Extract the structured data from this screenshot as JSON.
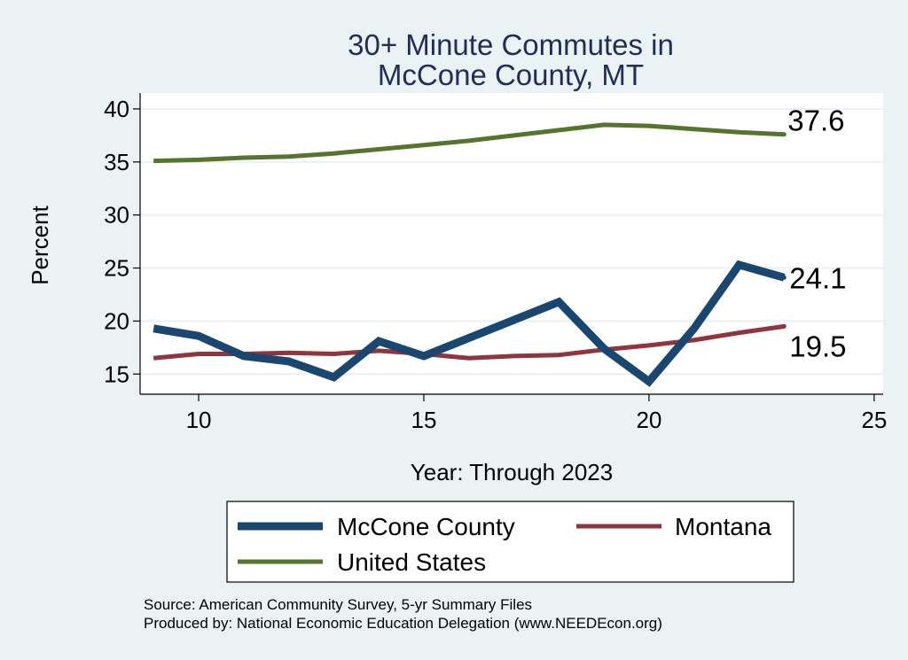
{
  "chart_data": {
    "type": "line",
    "title_lines": [
      "30+ Minute Commutes in",
      "McCone County, MT"
    ],
    "xlabel": "Year: Through 2023",
    "ylabel": "Percent",
    "xlim": [
      8.7,
      25.2
    ],
    "ylim": [
      13.1,
      41.5
    ],
    "xticks": [
      10,
      15,
      20,
      25
    ],
    "yticks": [
      15,
      20,
      25,
      30,
      35,
      40
    ],
    "grid": true,
    "legend_position": "bottom",
    "series": [
      {
        "name": "McCone County",
        "color": "#1a476f",
        "x": [
          9,
          10,
          11,
          12,
          13,
          14,
          15,
          16,
          17,
          18,
          19,
          20,
          21,
          22,
          23
        ],
        "values": [
          19.3,
          18.6,
          16.7,
          16.2,
          14.7,
          18.1,
          16.7,
          18.4,
          20.1,
          21.8,
          17.4,
          14.3,
          19.3,
          25.3,
          24.1
        ],
        "end_label": "24.1"
      },
      {
        "name": "Montana",
        "color": "#90353b",
        "x": [
          9,
          10,
          11,
          12,
          13,
          14,
          15,
          16,
          17,
          18,
          19,
          20,
          21,
          22,
          23
        ],
        "values": [
          16.5,
          16.9,
          16.9,
          17.0,
          16.9,
          17.2,
          16.9,
          16.5,
          16.7,
          16.8,
          17.3,
          17.7,
          18.2,
          18.9,
          19.5
        ],
        "end_label": "19.5"
      },
      {
        "name": "United States",
        "color": "#55752f",
        "x": [
          9,
          10,
          11,
          12,
          13,
          14,
          15,
          16,
          17,
          18,
          19,
          20,
          21,
          22,
          23
        ],
        "values": [
          35.1,
          35.2,
          35.4,
          35.5,
          35.8,
          36.2,
          36.6,
          37.0,
          37.5,
          38.0,
          38.5,
          38.4,
          38.1,
          37.8,
          37.6
        ],
        "end_label": "37.6"
      }
    ]
  },
  "notes": {
    "source": "Source: American Community Survey, 5-yr Summary Files",
    "produced": "Produced by: National Economic Education Delegation (www.NEEDEcon.org)"
  }
}
